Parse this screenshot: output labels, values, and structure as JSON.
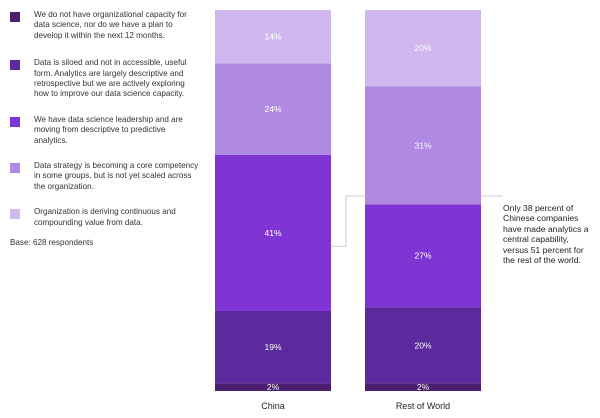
{
  "legend": {
    "items": [
      {
        "label": "We do not have organizational capacity for data science, nor do we have a plan to develop it within the next 12 months.",
        "color": "#4b1e6e"
      },
      {
        "label": "Data is siloed and not in accessible, useful form. Analytics are largely descriptive and retrospective but we are actively exploring how to improve our data science capacity.",
        "color": "#5b2a9c"
      },
      {
        "label": "We have data science leadership and are moving from descriptive to predictive analytics.",
        "color": "#7f35d4"
      },
      {
        "label": "Data strategy is becoming a core competency in some groups, but is not yet scaled across the organization.",
        "color": "#b08ae2"
      },
      {
        "label": "Organization is deriving continuous and compounding value from data.",
        "color": "#d0b7ee"
      }
    ]
  },
  "base_note": "Base: 628 respondents",
  "annotation": "Only 38 percent of Chinese companies have made analytics a central capability, versus 51 percent for the rest of the world.",
  "chart_data": {
    "type": "bar",
    "stacked": true,
    "categories": [
      "China",
      "Rest of World"
    ],
    "series": [
      {
        "name": "We do not have organizational capacity for data science, nor do we have a plan to develop it within the next 12 months.",
        "values": [
          2,
          2
        ],
        "labels": [
          "2%",
          "2%"
        ],
        "color": "#4b1e6e"
      },
      {
        "name": "Data is siloed and not in accessible, useful form. Analytics are largely descriptive and retrospective but we are actively exploring how to improve our data science capacity.",
        "values": [
          19,
          20
        ],
        "labels": [
          "19%",
          "20%"
        ],
        "color": "#5b2a9c"
      },
      {
        "name": "We have data science leadership and are moving from descriptive to predictive analytics.",
        "values": [
          41,
          27
        ],
        "labels": [
          "41%",
          "27%"
        ],
        "color": "#7f35d4"
      },
      {
        "name": "Data strategy is becoming a core competency in some groups, but is not yet scaled across the organization.",
        "values": [
          24,
          31
        ],
        "labels": [
          "24%",
          "31%"
        ],
        "color": "#b08ae2"
      },
      {
        "name": "Organization is deriving continuous and compounding value from data.",
        "values": [
          14,
          20
        ],
        "labels": [
          "14%",
          "20%"
        ],
        "color": "#d0b7ee"
      }
    ],
    "ylim": [
      0,
      100
    ]
  }
}
